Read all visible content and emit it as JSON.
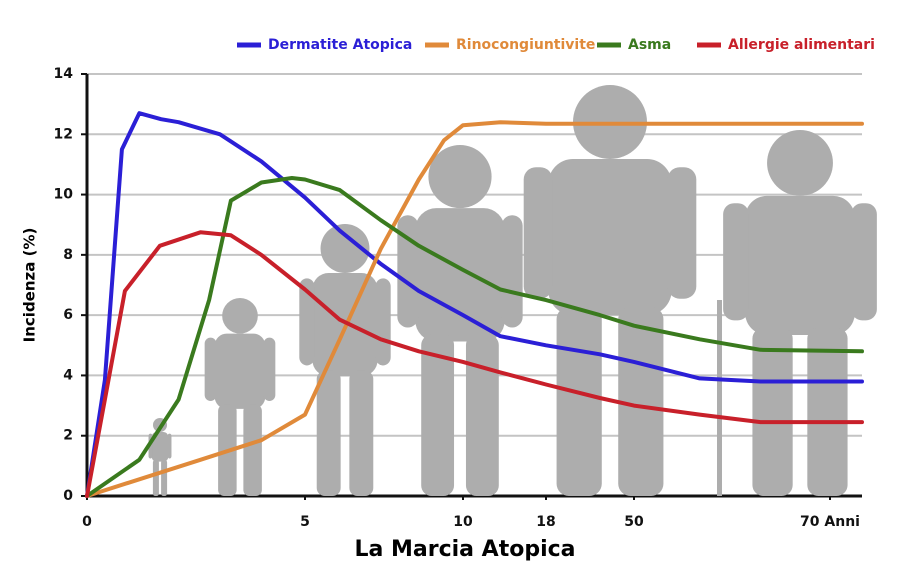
{
  "chart_data": {
    "type": "line",
    "title": "La Marcia Atopica",
    "ylabel": "Incidenza (%)",
    "xlim": [
      0,
      75
    ],
    "xticks": [
      0,
      5,
      10,
      18,
      50,
      {
        "value": 70,
        "label": "70 Anni"
      }
    ],
    "ylim": [
      0,
      14
    ],
    "yticks": [
      0,
      2,
      4,
      6,
      8,
      10,
      12,
      14
    ],
    "grid": true,
    "legend": "top",
    "series": [
      {
        "name": "Dermatite Atopica",
        "color": "#2b1fd6",
        "x": [
          0,
          0.41,
          0.8,
          1.2,
          1.7,
          2.1,
          3.05,
          4.0,
          5,
          6.1,
          7.4,
          8.6,
          10,
          13.6,
          18,
          37.6,
          50,
          56.7,
          62.9,
          75
        ],
        "values": [
          0,
          3.85,
          11.5,
          12.7,
          12.5,
          12.4,
          12.0,
          11.1,
          9.9,
          8.8,
          7.7,
          6.8,
          6.0,
          5.3,
          5.0,
          4.7,
          4.45,
          3.9,
          3.8,
          3.8
        ]
      },
      {
        "name": "Rinocongiuntivite",
        "color": "#e08a3a",
        "x": [
          0,
          2.6,
          4.0,
          5,
          6.1,
          7.4,
          8.6,
          9.4,
          10,
          13.6,
          18,
          75
        ],
        "values": [
          0,
          1.2,
          1.85,
          2.7,
          5.2,
          8.2,
          10.5,
          11.8,
          12.3,
          12.4,
          12.35,
          12.35
        ]
      },
      {
        "name": "Asma",
        "color": "#3a7a1e",
        "x": [
          0,
          1.2,
          2.1,
          2.8,
          3.3,
          4.0,
          4.7,
          5,
          6.1,
          7.4,
          8.6,
          10,
          13.6,
          18,
          37.6,
          50,
          56.7,
          62.9,
          75
        ],
        "values": [
          0,
          1.2,
          3.2,
          6.5,
          9.8,
          10.4,
          10.55,
          10.5,
          10.15,
          9.15,
          8.3,
          7.5,
          6.85,
          6.5,
          6.0,
          5.65,
          5.2,
          4.85,
          4.8
        ]
      },
      {
        "name": "Allergie alimentari",
        "color": "#c8202a",
        "x": [
          0,
          0.41,
          0.87,
          1.67,
          2.6,
          3.3,
          4.0,
          5,
          6.1,
          7.4,
          8.6,
          10,
          13.6,
          18,
          37.6,
          50,
          56.7,
          62.9,
          75
        ],
        "values": [
          0,
          3.2,
          6.8,
          8.3,
          8.75,
          8.65,
          8.0,
          6.85,
          5.85,
          5.2,
          4.8,
          4.45,
          4.1,
          3.7,
          3.25,
          3.0,
          2.7,
          2.45,
          2.45
        ]
      }
    ]
  }
}
